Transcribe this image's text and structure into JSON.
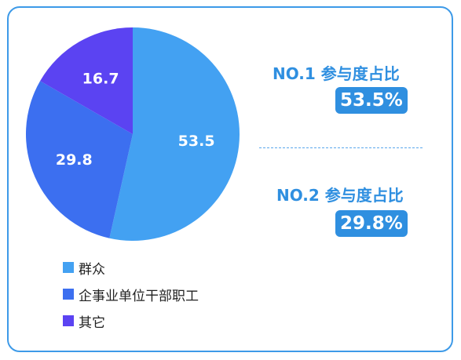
{
  "chart_data": {
    "type": "pie",
    "series": [
      {
        "name": "群众",
        "value": 53.5,
        "color": "#43a1f2"
      },
      {
        "name": "企事业单位干部职工",
        "value": 29.8,
        "color": "#3c6ff0"
      },
      {
        "name": "其它",
        "value": 16.7,
        "color": "#5b43f2"
      }
    ],
    "legend_position": "bottom-left"
  },
  "stats": [
    {
      "title": "NO.1 参与度占比",
      "value": "53.5%"
    },
    {
      "title": "NO.2 参与度占比",
      "value": "29.8%"
    }
  ],
  "colors": {
    "accent": "#2f8fe0",
    "border": "#3d9ae8"
  }
}
